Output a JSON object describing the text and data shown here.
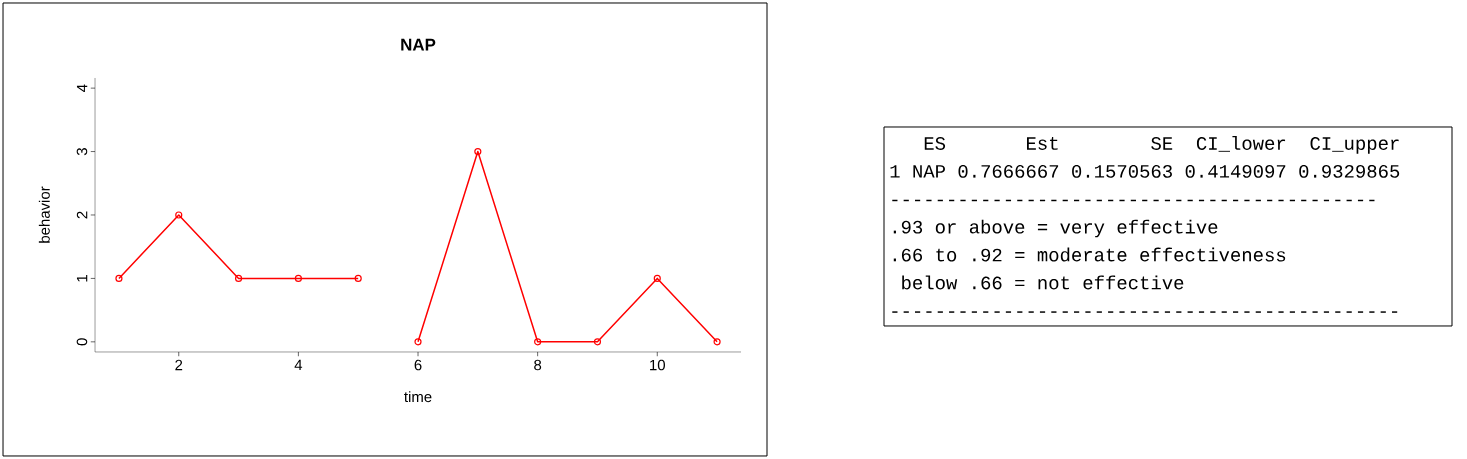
{
  "chart_data": [
    {
      "type": "line",
      "title": "NAP",
      "xlabel": "time",
      "ylabel": "behavior",
      "marker": "circle",
      "line_style": "solid",
      "series": [
        {
          "color": "#ff0000",
          "x": [
            1,
            2,
            3,
            4,
            5
          ],
          "values": [
            1,
            2,
            1,
            1,
            1
          ]
        },
        {
          "color": "#ff0000",
          "x": [
            6,
            7,
            8,
            9,
            10,
            11
          ],
          "values": [
            0,
            3,
            0,
            0,
            1,
            0
          ]
        }
      ],
      "xlim": [
        0.6,
        11.4
      ],
      "ylim": [
        -0.16,
        4.16
      ],
      "xticks": [
        2,
        4,
        6,
        8,
        10
      ],
      "yticks": [
        0,
        1,
        2,
        3,
        4
      ]
    },
    {
      "type": "other",
      "annotations": [
        "ES",
        "Est",
        "SE",
        "CI_lower",
        "CI_upper",
        "1",
        "NAP",
        "0.7666667",
        "0.1570563",
        "0.4149097",
        "0.9329865",
        "-------------------------------------------",
        ".93 or above = very effective",
        ".66 to .92 = moderate effectiveness",
        " below .66 = not effective",
        "---------------------------------------------"
      ]
    }
  ]
}
